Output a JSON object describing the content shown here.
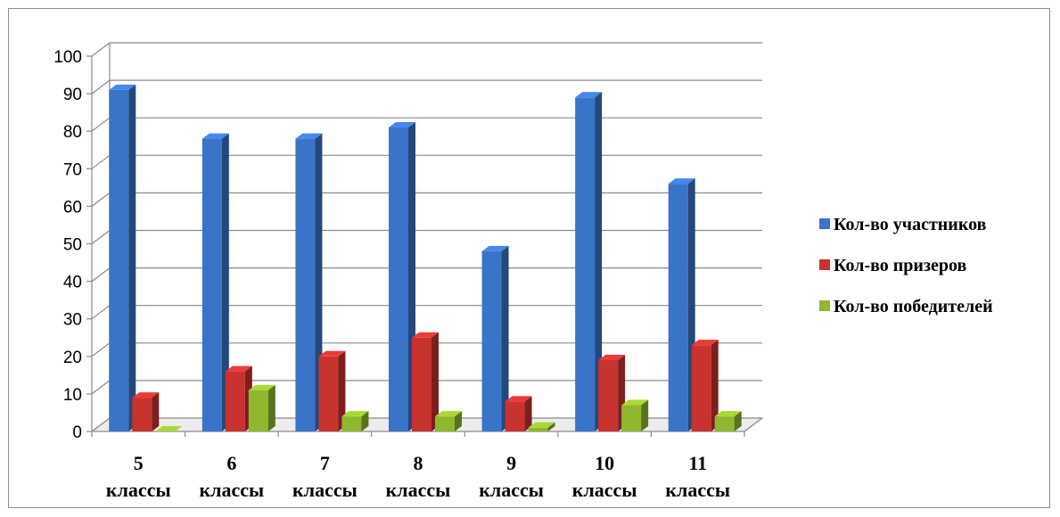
{
  "chart_data": {
    "type": "bar",
    "title": "",
    "xlabel": "",
    "ylabel": "",
    "ylim": [
      0,
      100
    ],
    "y_ticks": [
      "0",
      "10",
      "20",
      "30",
      "40",
      "50",
      "60",
      "70",
      "80",
      "90",
      "100"
    ],
    "grid": true,
    "legend_position": "right",
    "categories": [
      [
        "5",
        "классы"
      ],
      [
        "6",
        "классы"
      ],
      [
        "7",
        "классы"
      ],
      [
        "8",
        "классы"
      ],
      [
        "9",
        "классы"
      ],
      [
        "10",
        "классы"
      ],
      [
        "11",
        "классы"
      ]
    ],
    "series": [
      {
        "name": "Кол-во участников",
        "color": "#3a74c8",
        "values": [
          91,
          78,
          78,
          81,
          48,
          89,
          66
        ]
      },
      {
        "name": "Кол-во призеров",
        "color": "#c8322f",
        "values": [
          9,
          16,
          20,
          25,
          8,
          19,
          23
        ]
      },
      {
        "name": "Кол-во победителей",
        "color": "#8fb82e",
        "values": [
          0,
          11,
          4,
          4,
          1,
          7,
          4
        ]
      }
    ]
  }
}
